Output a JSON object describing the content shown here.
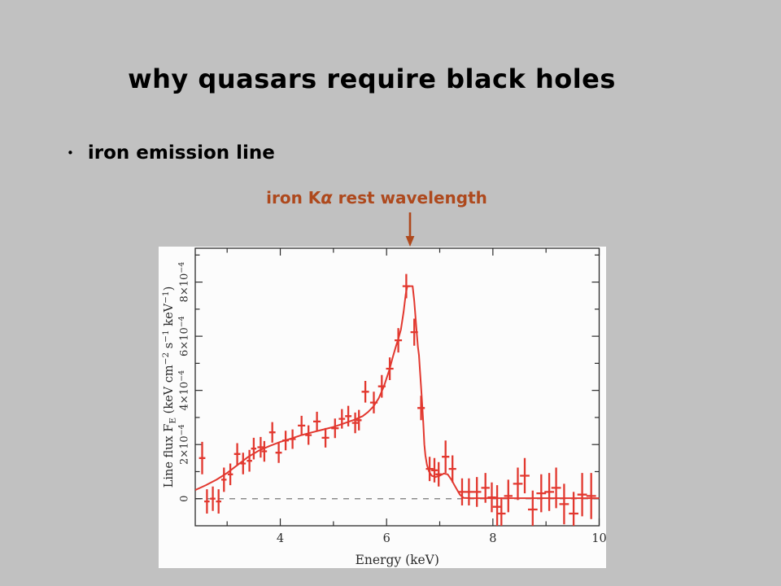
{
  "slide": {
    "background_color": "#c1c1c1",
    "title": "why quasars require black holes",
    "title_color": "#000000",
    "bullet_marker": "•",
    "bullet": "iron emission line",
    "annotation": {
      "text_pre": "iron K",
      "text_alpha": "α",
      "text_post": " rest wavelength",
      "color": "#ae491d"
    }
  },
  "chart_data": {
    "type": "scatter",
    "title": "",
    "xlabel": "Energy (keV)",
    "ylabel": "Line flux F_E (keV cm^-2 s^-1 keV^-1)",
    "xlim": [
      2.4,
      10
    ],
    "ylim": [
      -0.0001,
      0.000925
    ],
    "grid": false,
    "zero_line": "dashed",
    "legend": "none",
    "frame_color": "#2b2b2b",
    "data_color": "#e2382f",
    "dashed_line_color": "#8c8c8c",
    "panel_background": "#fcfcfc",
    "flux_unit_scale": 0.0001,
    "x_ticks_labeled": [
      {
        "v": 4,
        "label": "4"
      },
      {
        "v": 6,
        "label": "6"
      },
      {
        "v": 8,
        "label": "8"
      },
      {
        "v": 10,
        "label": "10"
      }
    ],
    "x_ticks_minor": [
      3,
      5,
      7,
      9
    ],
    "y_ticks_minor_1e4": [
      1,
      3,
      5,
      7,
      9
    ],
    "y_ticks_labeled_1e4": [
      {
        "v": 0,
        "segments": [
          {
            "t": "0"
          }
        ]
      },
      {
        "v": 2,
        "segments": [
          {
            "t": "2×10"
          },
          {
            "t": "−4",
            "style": "sup"
          }
        ]
      },
      {
        "v": 4,
        "segments": [
          {
            "t": "4×10"
          },
          {
            "t": "−4",
            "style": "sup"
          }
        ]
      },
      {
        "v": 6,
        "segments": [
          {
            "t": "6×10"
          },
          {
            "t": "−4",
            "style": "sup"
          }
        ]
      },
      {
        "v": 8,
        "segments": [
          {
            "t": "8×10"
          },
          {
            "t": "−4",
            "style": "sup"
          }
        ]
      }
    ],
    "ylabel_segments": [
      {
        "t": "Line flux F"
      },
      {
        "t": "E",
        "style": "sub"
      },
      {
        "t": " (keV cm"
      },
      {
        "t": "−2",
        "style": "sup"
      },
      {
        "t": " s"
      },
      {
        "t": "−1",
        "style": "sup"
      },
      {
        "t": " keV"
      },
      {
        "t": "−1",
        "style": "sup"
      },
      {
        "t": ")"
      }
    ],
    "series": [
      {
        "name": "data-points",
        "type": "errorbar",
        "note": "points_1e4 entries are [energy_keV, flux, flux_err, energy_err] with flux in units of 1e-4",
        "points_1e4": [
          [
            2.53,
            1.5,
            0.6,
            0.06
          ],
          [
            2.62,
            -0.1,
            0.45,
            0.05
          ],
          [
            2.73,
            0.0,
            0.45,
            0.05
          ],
          [
            2.84,
            -0.1,
            0.45,
            0.05
          ],
          [
            2.94,
            0.7,
            0.45,
            0.05
          ],
          [
            3.06,
            0.9,
            0.4,
            0.05
          ],
          [
            3.19,
            1.65,
            0.4,
            0.06
          ],
          [
            3.3,
            1.3,
            0.4,
            0.05
          ],
          [
            3.42,
            1.4,
            0.4,
            0.05
          ],
          [
            3.5,
            1.85,
            0.4,
            0.05
          ],
          [
            3.63,
            1.9,
            0.38,
            0.06
          ],
          [
            3.7,
            1.75,
            0.38,
            0.05
          ],
          [
            3.85,
            2.45,
            0.38,
            0.06
          ],
          [
            3.97,
            1.7,
            0.38,
            0.06
          ],
          [
            4.1,
            2.15,
            0.36,
            0.06
          ],
          [
            4.23,
            2.2,
            0.36,
            0.06
          ],
          [
            4.4,
            2.7,
            0.36,
            0.07
          ],
          [
            4.53,
            2.35,
            0.36,
            0.06
          ],
          [
            4.69,
            2.85,
            0.36,
            0.07
          ],
          [
            4.85,
            2.25,
            0.36,
            0.07
          ],
          [
            5.03,
            2.6,
            0.36,
            0.07
          ],
          [
            5.16,
            2.95,
            0.36,
            0.06
          ],
          [
            5.28,
            3.05,
            0.38,
            0.06
          ],
          [
            5.41,
            2.8,
            0.38,
            0.06
          ],
          [
            5.48,
            2.9,
            0.38,
            0.05
          ],
          [
            5.6,
            3.95,
            0.4,
            0.07
          ],
          [
            5.76,
            3.55,
            0.4,
            0.07
          ],
          [
            5.91,
            4.15,
            0.42,
            0.07
          ],
          [
            6.06,
            4.8,
            0.42,
            0.07
          ],
          [
            6.22,
            5.85,
            0.45,
            0.07
          ],
          [
            6.37,
            7.85,
            0.45,
            0.07
          ],
          [
            6.52,
            6.15,
            0.5,
            0.07
          ],
          [
            6.65,
            3.35,
            0.45,
            0.07
          ],
          [
            6.81,
            1.1,
            0.45,
            0.07
          ],
          [
            6.9,
            1.05,
            0.45,
            0.06
          ],
          [
            6.98,
            0.9,
            0.45,
            0.06
          ],
          [
            7.11,
            1.55,
            0.6,
            0.07
          ],
          [
            7.24,
            1.1,
            0.5,
            0.07
          ],
          [
            7.42,
            0.25,
            0.5,
            0.08
          ],
          [
            7.55,
            0.25,
            0.5,
            0.08
          ],
          [
            7.7,
            0.25,
            0.55,
            0.08
          ],
          [
            7.86,
            0.4,
            0.55,
            0.08
          ],
          [
            7.98,
            0.05,
            0.55,
            0.08
          ],
          [
            8.08,
            -0.3,
            0.8,
            0.08
          ],
          [
            8.16,
            -0.55,
            0.6,
            0.08
          ],
          [
            8.29,
            0.1,
            0.6,
            0.08
          ],
          [
            8.47,
            0.55,
            0.6,
            0.09
          ],
          [
            8.6,
            0.85,
            0.65,
            0.09
          ],
          [
            8.75,
            -0.4,
            0.7,
            0.09
          ],
          [
            8.91,
            0.2,
            0.7,
            0.09
          ],
          [
            9.06,
            0.25,
            0.7,
            0.09
          ],
          [
            9.19,
            0.4,
            0.75,
            0.09
          ],
          [
            9.34,
            -0.2,
            0.75,
            0.09
          ],
          [
            9.52,
            -0.55,
            0.8,
            0.09
          ],
          [
            9.68,
            0.15,
            0.8,
            0.09
          ],
          [
            9.85,
            0.1,
            0.85,
            0.09
          ]
        ]
      },
      {
        "name": "model-curve",
        "type": "line",
        "note": "points_1e4 entries are [energy_keV, flux] with flux in units of 1e-4",
        "points_1e4": [
          [
            2.4,
            0.32
          ],
          [
            2.6,
            0.5
          ],
          [
            2.8,
            0.7
          ],
          [
            3.0,
            0.95
          ],
          [
            3.2,
            1.25
          ],
          [
            3.4,
            1.55
          ],
          [
            3.6,
            1.78
          ],
          [
            3.8,
            1.95
          ],
          [
            4.0,
            2.1
          ],
          [
            4.2,
            2.22
          ],
          [
            4.4,
            2.35
          ],
          [
            4.6,
            2.45
          ],
          [
            4.8,
            2.55
          ],
          [
            5.0,
            2.65
          ],
          [
            5.2,
            2.78
          ],
          [
            5.4,
            2.92
          ],
          [
            5.55,
            3.05
          ],
          [
            5.65,
            3.2
          ],
          [
            5.75,
            3.4
          ],
          [
            5.85,
            3.7
          ],
          [
            5.95,
            4.15
          ],
          [
            6.05,
            4.75
          ],
          [
            6.12,
            5.25
          ],
          [
            6.18,
            5.65
          ],
          [
            6.22,
            5.9
          ],
          [
            6.27,
            6.25
          ],
          [
            6.32,
            6.9
          ],
          [
            6.36,
            7.55
          ],
          [
            6.39,
            7.85
          ],
          [
            6.49,
            7.85
          ],
          [
            6.52,
            7.3
          ],
          [
            6.54,
            6.8
          ],
          [
            6.56,
            6.3
          ],
          [
            6.59,
            5.6
          ],
          [
            6.61,
            5.3
          ],
          [
            6.63,
            4.7
          ],
          [
            6.66,
            3.8
          ],
          [
            6.69,
            2.8
          ],
          [
            6.71,
            2.0
          ],
          [
            6.73,
            1.6
          ],
          [
            6.76,
            1.25
          ],
          [
            6.8,
            1.0
          ],
          [
            6.85,
            0.85
          ],
          [
            6.92,
            0.8
          ],
          [
            7.0,
            0.85
          ],
          [
            7.08,
            0.93
          ],
          [
            7.15,
            0.9
          ],
          [
            7.22,
            0.7
          ],
          [
            7.3,
            0.42
          ],
          [
            7.38,
            0.15
          ],
          [
            7.45,
            0.03
          ],
          [
            7.6,
            0.02
          ],
          [
            10.0,
            0.02
          ]
        ]
      }
    ]
  }
}
